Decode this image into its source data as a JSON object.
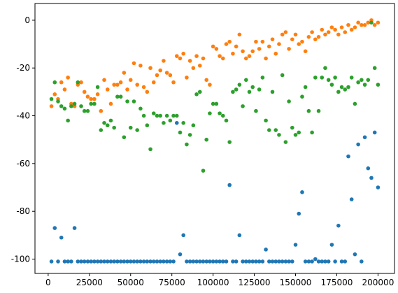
{
  "chart_data": {
    "type": "scatter",
    "x": [
      2000,
      4000,
      6000,
      8000,
      10000,
      12000,
      14000,
      16000,
      18000,
      20000,
      22000,
      24000,
      26000,
      28000,
      30000,
      32000,
      34000,
      36000,
      38000,
      40000,
      42000,
      44000,
      46000,
      48000,
      50000,
      52000,
      54000,
      56000,
      58000,
      60000,
      62000,
      64000,
      66000,
      68000,
      70000,
      72000,
      74000,
      76000,
      78000,
      80000,
      82000,
      84000,
      86000,
      88000,
      90000,
      92000,
      94000,
      96000,
      98000,
      100000,
      102000,
      104000,
      106000,
      108000,
      110000,
      112000,
      114000,
      116000,
      118000,
      120000,
      122000,
      124000,
      126000,
      128000,
      130000,
      132000,
      134000,
      136000,
      138000,
      140000,
      142000,
      144000,
      146000,
      148000,
      150000,
      152000,
      154000,
      156000,
      158000,
      160000,
      162000,
      164000,
      166000,
      168000,
      170000,
      172000,
      174000,
      176000,
      178000,
      180000,
      182000,
      184000,
      186000,
      188000,
      190000,
      192000,
      194000,
      196000,
      198000,
      200000
    ],
    "series": [
      {
        "color": "#1f77b4",
        "values": [
          -101,
          -87,
          -101,
          -91,
          -101,
          -101,
          -101,
          -87,
          -101,
          -101,
          -101,
          -101,
          -101,
          -101,
          -101,
          -101,
          -101,
          -101,
          -101,
          -101,
          -101,
          -101,
          -101,
          -101,
          -101,
          -101,
          -101,
          -101,
          -101,
          -101,
          -101,
          -101,
          -101,
          -101,
          -101,
          -101,
          -101,
          -101,
          -43,
          -98,
          -90,
          -101,
          -101,
          -101,
          -101,
          -101,
          -101,
          -101,
          -101,
          -101,
          -101,
          -101,
          -101,
          -101,
          -69,
          -101,
          -101,
          -90,
          -101,
          -101,
          -101,
          -101,
          -101,
          -101,
          -101,
          -96,
          -101,
          -101,
          -101,
          -101,
          -101,
          -101,
          -101,
          -101,
          -94,
          -81,
          -72,
          -101,
          -101,
          -101,
          -100,
          -101,
          -101,
          -101,
          -101,
          -94,
          -101,
          -86,
          -101,
          -101,
          -57,
          -75,
          -98,
          -52,
          -101,
          -49,
          -62,
          -66,
          -47,
          -70
        ]
      },
      {
        "color": "#ff7f0e",
        "values": [
          -36,
          -31,
          -33,
          -26,
          -29,
          -24,
          -35,
          -36,
          -27,
          -26,
          -30,
          -32,
          -33,
          -33,
          -31,
          -38,
          -25,
          -29,
          -35,
          -27,
          -27,
          -26,
          -22,
          -29,
          -25,
          -18,
          -27,
          -19,
          -28,
          -30,
          -20,
          -26,
          -23,
          -21,
          -17,
          -22,
          -23,
          -26,
          -15,
          -16,
          -14,
          -24,
          -17,
          -20,
          -15,
          -19,
          -16,
          -25,
          -27,
          -11,
          -12,
          -15,
          -16,
          -10,
          -9,
          -14,
          -11,
          -6,
          -13,
          -16,
          -15,
          -13,
          -9,
          -12,
          -9,
          -16,
          -11,
          -8,
          -14,
          -10,
          -6,
          -5,
          -12,
          -8,
          -6,
          -10,
          -9,
          -13,
          -7,
          -5,
          -8,
          -7,
          -4,
          -6,
          -5,
          -3,
          -4,
          -6,
          -3,
          -5,
          -2,
          -4,
          -3,
          -1,
          -2,
          -2,
          -1,
          0,
          -2,
          -1
        ]
      },
      {
        "color": "#2ca02c",
        "values": [
          -33,
          -26,
          -34,
          -36,
          -37,
          -42,
          -36,
          -35,
          -26,
          -36,
          -38,
          -38,
          -35,
          -35,
          -28,
          -46,
          -43,
          -44,
          -42,
          -45,
          -32,
          -32,
          -49,
          -34,
          -45,
          -34,
          -46,
          -37,
          -40,
          -44,
          -54,
          -39,
          -40,
          -40,
          -43,
          -40,
          -42,
          -40,
          -40,
          -47,
          -43,
          -52,
          -48,
          -44,
          -31,
          -30,
          -63,
          -50,
          -39,
          -35,
          -35,
          -39,
          -40,
          -42,
          -51,
          -30,
          -29,
          -27,
          -36,
          -25,
          -30,
          -28,
          -38,
          -29,
          -24,
          -42,
          -46,
          -30,
          -46,
          -48,
          -23,
          -51,
          -34,
          -45,
          -48,
          -47,
          -32,
          -28,
          -38,
          -47,
          -24,
          -38,
          -24,
          -20,
          -25,
          -27,
          -24,
          -30,
          -28,
          -29,
          -28,
          -24,
          -35,
          -26,
          -25,
          -27,
          -25,
          -1,
          -20,
          -27
        ]
      }
    ],
    "xlim": [
      -8000,
      210000
    ],
    "ylim": [
      -106,
      7
    ],
    "xticks": [
      0,
      25000,
      50000,
      75000,
      100000,
      125000,
      150000,
      175000,
      200000
    ],
    "yticks": [
      0,
      -20,
      -40,
      -60,
      -80,
      -100
    ]
  }
}
